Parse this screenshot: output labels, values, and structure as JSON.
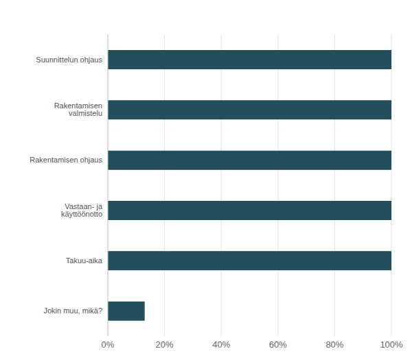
{
  "chart_data": {
    "type": "bar",
    "orientation": "horizontal",
    "categories": [
      "Suunnittelun ohjaus",
      "Rakentamisen valmistelu",
      "Rakentamisen ohjaus",
      "Vastaan- ja käyttöönotto",
      "Takuu-aika",
      "Jokin muu, mikä?"
    ],
    "values": [
      100,
      100,
      100,
      100,
      100,
      13
    ],
    "color": "#234e5c",
    "xlim": [
      0,
      100
    ],
    "xticks": [
      {
        "value": 0,
        "label": "0%"
      },
      {
        "value": 20,
        "label": "20%"
      },
      {
        "value": 40,
        "label": "40%"
      },
      {
        "value": 60,
        "label": "60%"
      },
      {
        "value": 80,
        "label": "80%"
      },
      {
        "value": 100,
        "label": "100%"
      }
    ],
    "grid": true
  }
}
